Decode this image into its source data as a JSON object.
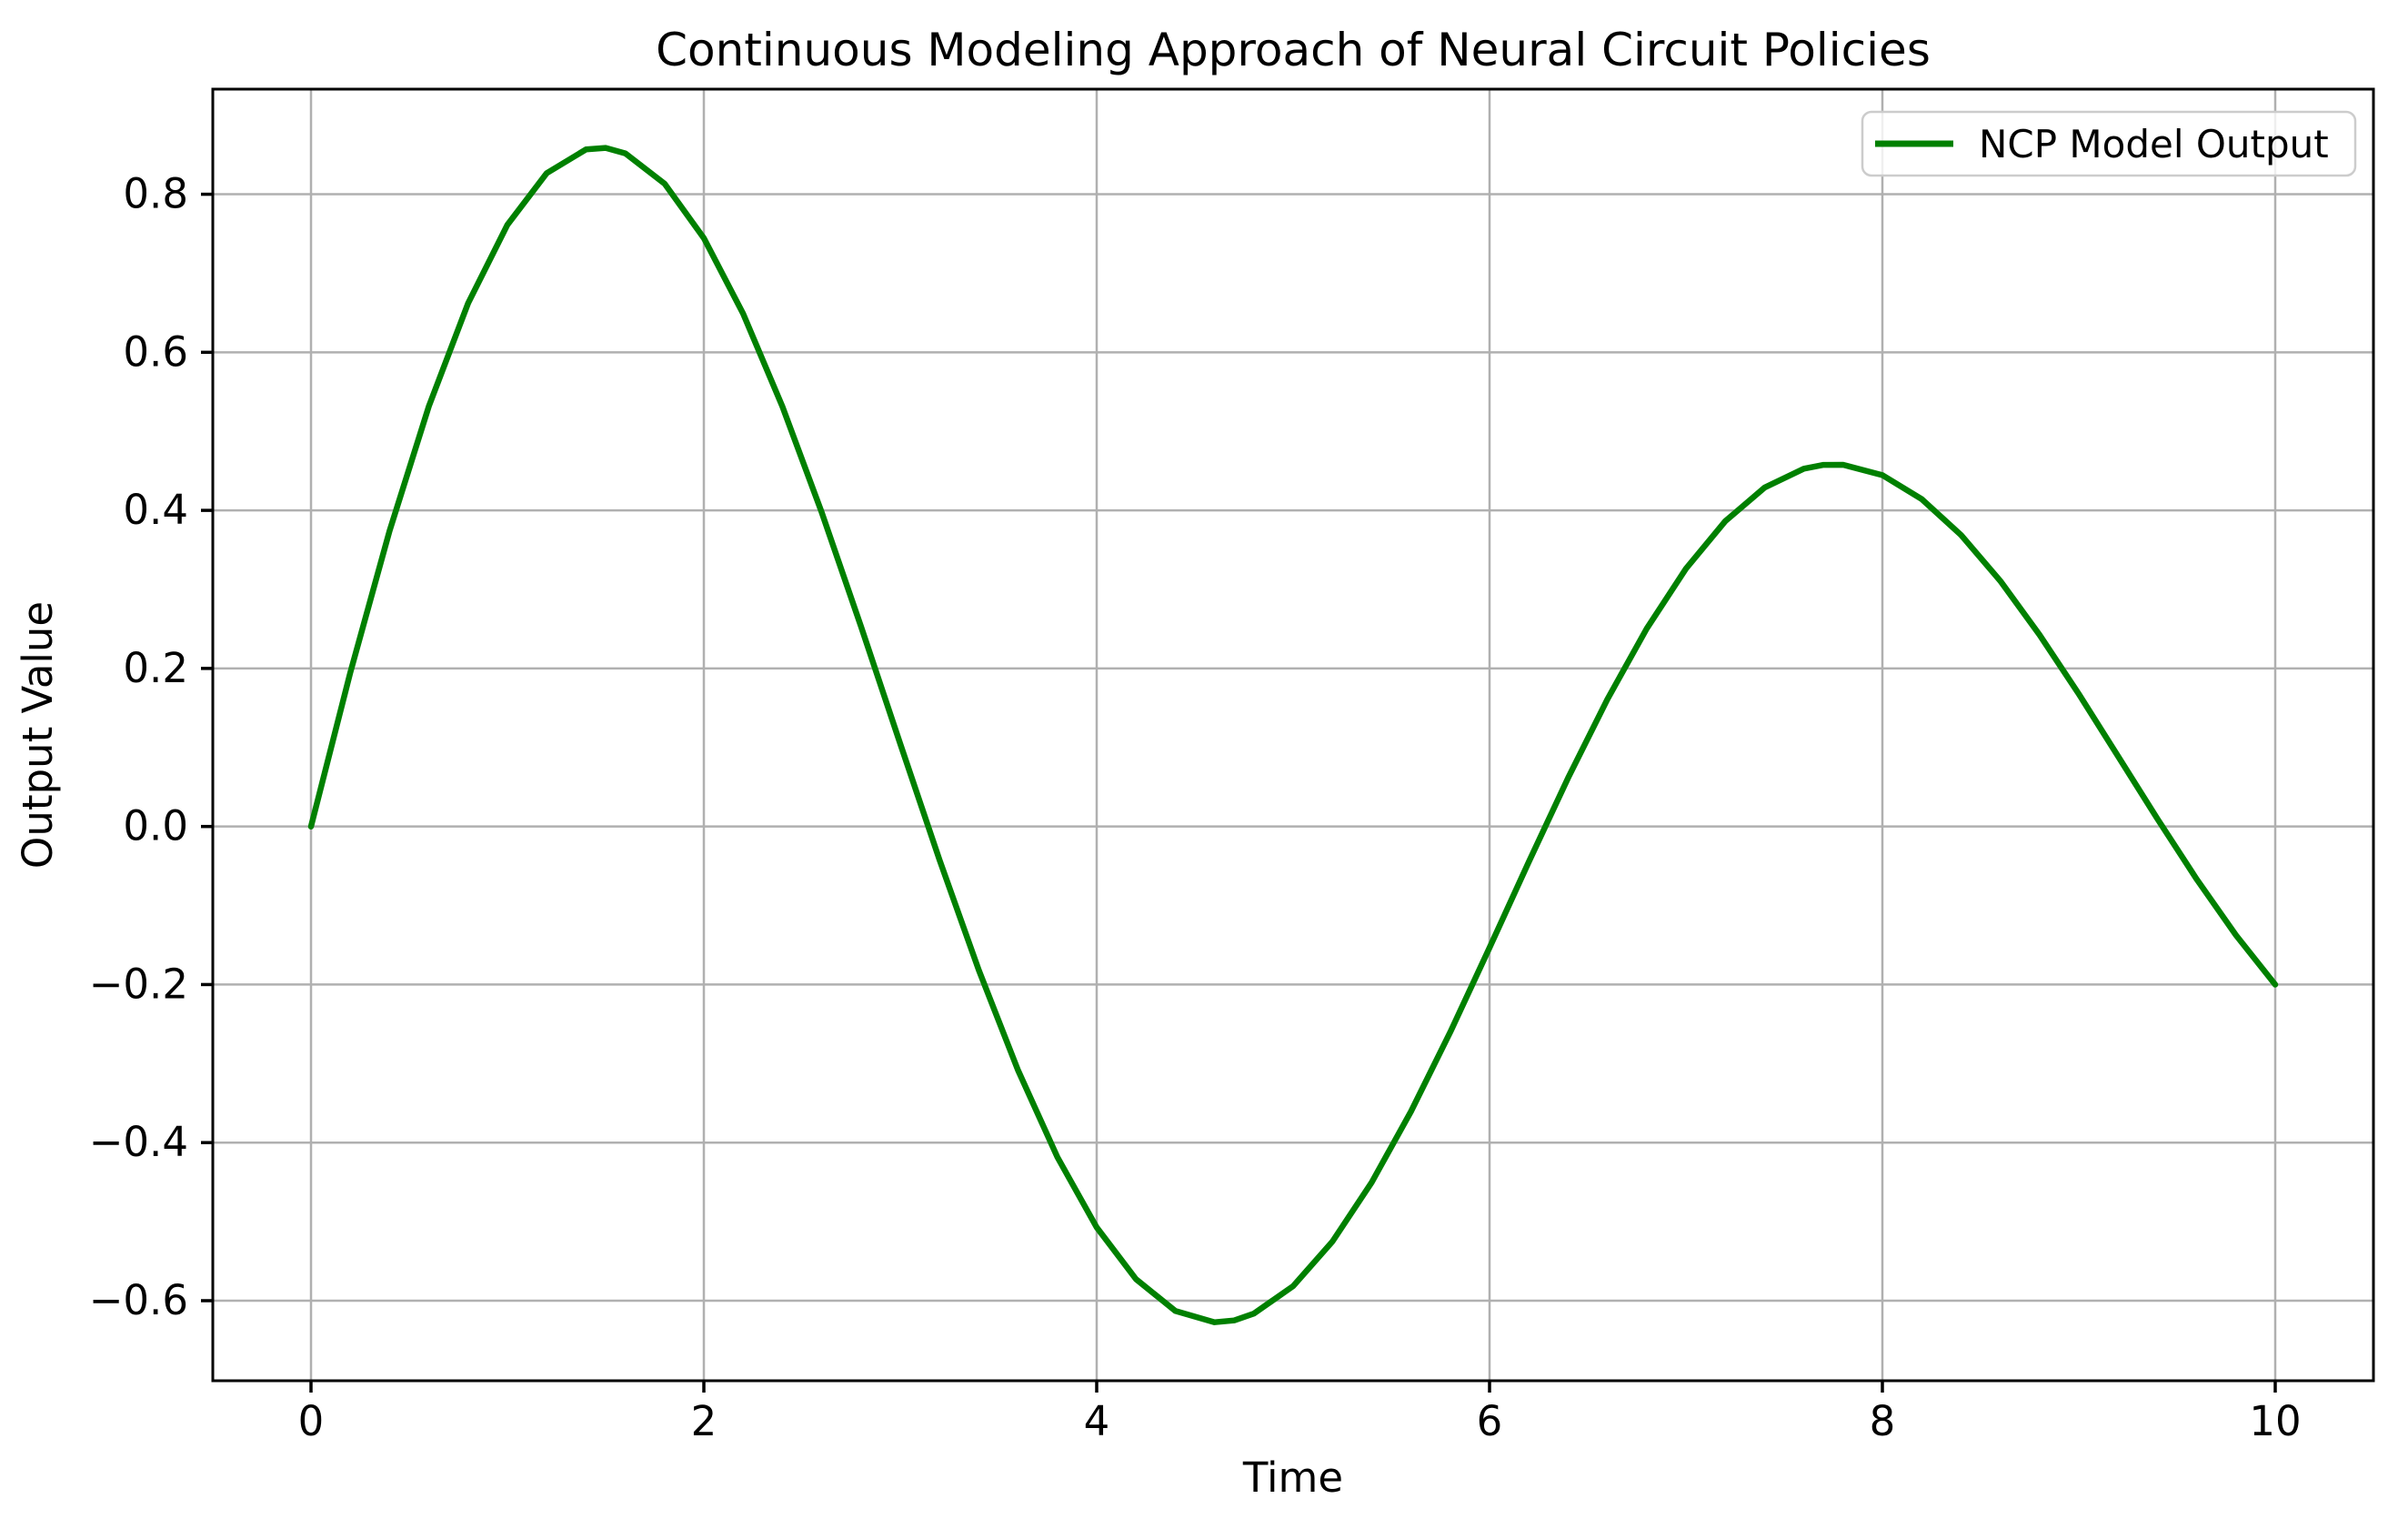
{
  "figure": {
    "title": "Continuous Modeling Approach of Neural Circuit Policies",
    "xlabel": "Time",
    "ylabel": "Output Value",
    "background": "#ffffff"
  },
  "legend": {
    "label": "NCP Model Output",
    "position": "upper right"
  },
  "colors": {
    "line": "#008000",
    "grid": "#b0b0b0",
    "spine": "#000000",
    "text": "#000000",
    "legend_border": "#cccccc",
    "legend_fill": "#ffffff"
  },
  "chart_data": {
    "type": "line",
    "title": "Continuous Modeling Approach of Neural Circuit Policies",
    "xlabel": "Time",
    "ylabel": "Output Value",
    "xlim": [
      -0.5,
      10.5
    ],
    "ylim": [
      -0.7013,
      0.933
    ],
    "xticks": [
      0,
      2,
      4,
      6,
      8,
      10
    ],
    "yticks": [
      -0.6,
      -0.4,
      -0.2,
      0.0,
      0.2,
      0.4,
      0.6,
      0.8
    ],
    "grid": true,
    "legend_position": "upper right",
    "series": [
      {
        "name": "NCP Model Output",
        "color": "#008000",
        "x": [
          0,
          0.2,
          0.4,
          0.6,
          0.8,
          1.0,
          1.2,
          1.4,
          1.5,
          1.6,
          1.8,
          2.0,
          2.2,
          2.4,
          2.6,
          2.8,
          3.0,
          3.2,
          3.4,
          3.6,
          3.8,
          4.0,
          4.2,
          4.4,
          4.6,
          4.7,
          4.8,
          5.0,
          5.2,
          5.4,
          5.6,
          5.8,
          6.0,
          6.2,
          6.4,
          6.6,
          6.8,
          7.0,
          7.2,
          7.4,
          7.6,
          7.7,
          7.8,
          8.0,
          8.2,
          8.4,
          8.6,
          8.8,
          9.0,
          9.2,
          9.4,
          9.6,
          9.8,
          10.0
        ],
        "y": [
          0.0,
          0.1947,
          0.3741,
          0.5318,
          0.6622,
          0.7614,
          0.8267,
          0.8567,
          0.8586,
          0.8518,
          0.8134,
          0.7445,
          0.6488,
          0.5313,
          0.3975,
          0.2532,
          0.1046,
          -0.0424,
          -0.1819,
          -0.3087,
          -0.4184,
          -0.5073,
          -0.5727,
          -0.6129,
          -0.6273,
          -0.625,
          -0.6164,
          -0.5816,
          -0.5252,
          -0.4503,
          -0.3606,
          -0.2601,
          -0.1534,
          -0.0447,
          0.0615,
          0.161,
          0.2503,
          0.3262,
          0.3863,
          0.4288,
          0.4527,
          0.4575,
          0.4577,
          0.4446,
          0.4143,
          0.3689,
          0.3108,
          0.2426,
          0.1676,
          0.0888,
          0.0097,
          -0.0667,
          -0.1375,
          -0.2001
        ]
      }
    ]
  }
}
